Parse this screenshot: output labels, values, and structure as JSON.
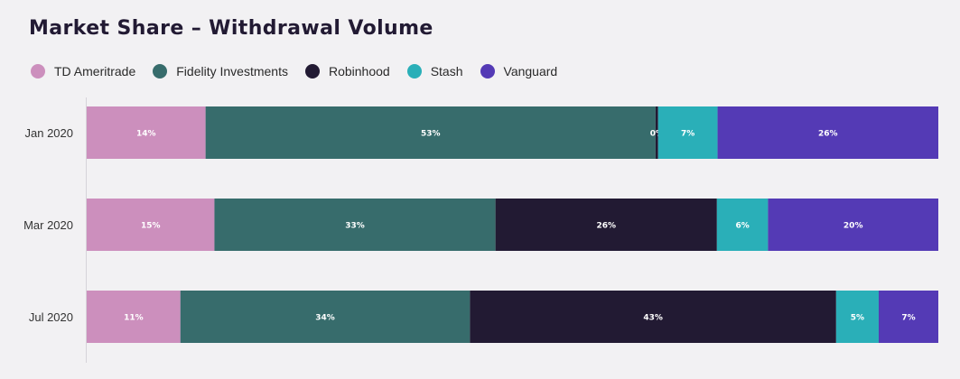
{
  "chart_data": {
    "type": "bar",
    "orientation": "horizontal",
    "stacked": true,
    "title": "Market Share – Withdrawal Volume",
    "categories": [
      "Jan 2020",
      "Mar 2020",
      "Jul 2020"
    ],
    "unit": "%",
    "xlim": [
      0,
      100
    ],
    "grid": false,
    "legend_position": "top-left",
    "series": [
      {
        "name": "TD Ameritrade",
        "color": "#cc8fbd",
        "label_color": "#ffffff",
        "values": [
          14,
          15,
          11
        ],
        "labels": [
          "14%",
          "15%",
          "11%"
        ]
      },
      {
        "name": "Fidelity Investments",
        "color": "#376c6c",
        "label_color": "#ffffff",
        "values": [
          53,
          33,
          34
        ],
        "labels": [
          "53%",
          "33%",
          "34%"
        ]
      },
      {
        "name": "Robinhood",
        "color": "#221a33",
        "label_color": "#ffffff",
        "values": [
          0.3,
          26,
          43
        ],
        "labels": [
          "0%",
          "26%",
          "43%"
        ]
      },
      {
        "name": "Stash",
        "color": "#2aafb8",
        "label_color": "#ffffff",
        "values": [
          7,
          6,
          5
        ],
        "labels": [
          "7%",
          "6%",
          "5%"
        ]
      },
      {
        "name": "Vanguard",
        "color": "#543ab5",
        "label_color": "#ffffff",
        "values": [
          26,
          20,
          7
        ],
        "labels": [
          "26%",
          "20%",
          "7%"
        ]
      }
    ]
  }
}
